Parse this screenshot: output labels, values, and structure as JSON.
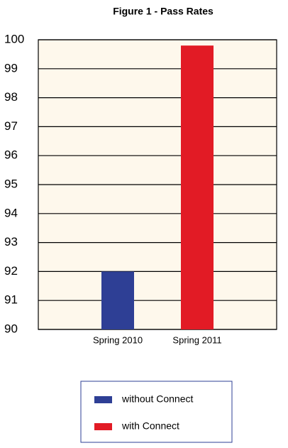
{
  "chart_data": {
    "type": "bar",
    "title": "Figure 1 - Pass Rates",
    "categories": [
      "Spring 2010",
      "Spring 2011"
    ],
    "series": [
      {
        "name": "without Connect",
        "color": "#2e3f95",
        "values": [
          92,
          null
        ]
      },
      {
        "name": "with Connect",
        "color": "#e21b25",
        "values": [
          null,
          99.8
        ]
      }
    ],
    "ylim": [
      90,
      100
    ],
    "yticks": [
      90,
      91,
      92,
      93,
      94,
      95,
      96,
      97,
      98,
      99,
      100
    ],
    "grid": true
  }
}
